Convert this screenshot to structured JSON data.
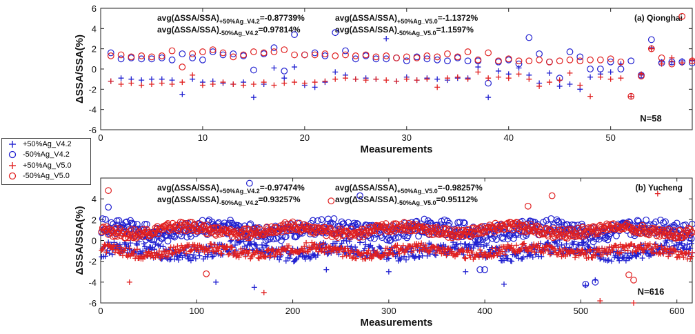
{
  "colors": {
    "blue": "#1f1fd0",
    "red": "#e01f1f",
    "axis": "#222222"
  },
  "legend": [
    {
      "label": "+50%Ag_V4.2",
      "marker": "plus",
      "color": "#1f1fd0"
    },
    {
      "label": "-50%Ag_V4.2",
      "marker": "circle",
      "color": "#1f1fd0"
    },
    {
      "label": "+50%Ag_V5.0",
      "marker": "plus",
      "color": "#e01f1f"
    },
    {
      "label": "-50%Ag_V5.0",
      "marker": "circle",
      "color": "#e01f1f"
    }
  ],
  "chart_data": [
    {
      "type": "scatter",
      "title": "(a) Qionghai",
      "xlabel": "Measurements",
      "ylabel": "ΔSSA/SSA(%)",
      "xlim": [
        0,
        58
      ],
      "ylim": [
        -6,
        6
      ],
      "xticks": [
        0,
        10,
        20,
        30,
        40,
        50
      ],
      "yticks": [
        -6,
        -4,
        -2,
        0,
        2,
        4,
        6
      ],
      "n_label": "N=58",
      "annotations": [
        {
          "prefix": "avg(ΔSSA/SSA)",
          "sub": "+50%Ag_V4.2",
          "value": "=-0.87739%"
        },
        {
          "prefix": "avg(ΔSSA/SSA)",
          "sub": "-50%Ag_V4.2",
          "value": "=0.97814%"
        },
        {
          "prefix": "avg(ΔSSA/SSA)",
          "sub": "+50%Ag_V5.0",
          "value": "=-1.1372%"
        },
        {
          "prefix": "avg(ΔSSA/SSA)",
          "sub": "-50%Ag_V5.0",
          "value": "=1.1597%"
        }
      ],
      "series": [
        {
          "name": "+50%Ag_V4.2",
          "x": [
            1,
            2,
            3,
            4,
            5,
            6,
            7,
            8,
            9,
            10,
            11,
            12,
            13,
            14,
            15,
            16,
            17,
            18,
            19,
            20,
            21,
            22,
            23,
            24,
            25,
            26,
            27,
            28,
            29,
            30,
            31,
            32,
            33,
            34,
            35,
            36,
            37,
            38,
            39,
            40,
            41,
            42,
            43,
            44,
            45,
            46,
            47,
            48,
            49,
            50,
            51,
            52,
            53,
            54,
            55,
            56,
            57,
            58
          ],
          "y": [
            -1.2,
            -0.9,
            -1.0,
            -1.1,
            -1.0,
            -1.0,
            -1.1,
            -2.5,
            -1.0,
            -1.3,
            -1.2,
            -1.4,
            -1.5,
            -1.3,
            -2.8,
            -1.5,
            0.1,
            -0.9,
            0.2,
            -1.6,
            -1.8,
            -1.3,
            -0.3,
            -0.6,
            -1.0,
            -0.9,
            -1.0,
            3.0,
            -1.2,
            -0.8,
            -1.1,
            -0.9,
            -1.0,
            -1.1,
            -0.9,
            -0.9,
            0.2,
            -2.8,
            -0.2,
            -0.5,
            0.1,
            -0.6,
            -1.4,
            -0.4,
            -1.7,
            -1.5,
            -2.0,
            -0.8,
            -0.5,
            -0.3,
            0.5,
            -2.7,
            -0.6,
            2.1,
            0.7,
            0.7,
            0.8,
            0.8
          ]
        },
        {
          "name": "-50%Ag_V4.2",
          "x": [
            1,
            2,
            3,
            4,
            5,
            6,
            7,
            8,
            9,
            10,
            11,
            12,
            13,
            14,
            15,
            16,
            17,
            18,
            19,
            20,
            21,
            22,
            23,
            24,
            25,
            26,
            27,
            28,
            29,
            30,
            31,
            32,
            33,
            34,
            35,
            36,
            37,
            38,
            39,
            40,
            41,
            42,
            43,
            44,
            45,
            46,
            47,
            48,
            49,
            50,
            51,
            52,
            53,
            54,
            55,
            56,
            57,
            58
          ],
          "y": [
            1.6,
            1.0,
            1.1,
            1.0,
            1.0,
            1.1,
            0.9,
            1.5,
            1.1,
            0.9,
            1.7,
            1.4,
            1.5,
            1.3,
            -0.1,
            1.5,
            2.1,
            -0.2,
            3.4,
            1.4,
            1.6,
            1.3,
            3.6,
            1.8,
            1.0,
            1.3,
            1.0,
            1.0,
            1.1,
            0.8,
            1.2,
            1.0,
            0.9,
            0.8,
            1.1,
            0.8,
            0.8,
            -1.4,
            0.7,
            0.9,
            0.5,
            3.1,
            1.5,
            0.7,
            -0.9,
            1.7,
            1.2,
            0.0,
            0.0,
            0.7,
            0.0,
            0.8,
            -0.6,
            2.9,
            0.6,
            0.7,
            0.7,
            0.6
          ]
        },
        {
          "name": "+50%Ag_V5.0",
          "x": [
            1,
            2,
            3,
            4,
            5,
            6,
            7,
            8,
            9,
            10,
            11,
            12,
            13,
            14,
            15,
            16,
            17,
            18,
            19,
            20,
            21,
            22,
            23,
            24,
            25,
            26,
            27,
            28,
            29,
            30,
            31,
            32,
            33,
            34,
            35,
            36,
            37,
            38,
            39,
            40,
            41,
            42,
            43,
            44,
            45,
            46,
            47,
            48,
            49,
            50,
            51,
            52,
            53,
            54,
            55,
            56,
            57,
            58
          ],
          "y": [
            -1.2,
            -1.5,
            -1.4,
            -1.6,
            -1.5,
            -1.4,
            -1.5,
            -1.3,
            -0.6,
            -1.6,
            -1.5,
            -1.3,
            -1.5,
            -1.6,
            -1.5,
            -1.3,
            -1.6,
            -1.4,
            -1.3,
            -1.4,
            -1.3,
            -1.2,
            -1.0,
            -0.9,
            -1.0,
            -1.1,
            -1.0,
            -1.1,
            -1.2,
            -1.0,
            -1.1,
            -1.0,
            -1.8,
            -0.9,
            -0.8,
            -1.0,
            -0.3,
            -0.9,
            -0.8,
            -0.9,
            -0.5,
            -1.0,
            -1.7,
            -1.3,
            -1.1,
            -0.4,
            -1.6,
            -2.7,
            -0.8,
            -1.0,
            -0.9,
            -2.7,
            -0.5,
            2.0,
            0.5,
            1.1,
            0.6,
            0.9
          ]
        },
        {
          "name": "-50%Ag_V5.0",
          "x": [
            1,
            2,
            3,
            4,
            5,
            6,
            7,
            8,
            9,
            10,
            11,
            12,
            13,
            14,
            15,
            16,
            17,
            18,
            19,
            20,
            21,
            22,
            23,
            24,
            25,
            26,
            27,
            28,
            29,
            30,
            31,
            32,
            33,
            34,
            35,
            36,
            37,
            38,
            39,
            40,
            41,
            42,
            43,
            44,
            45,
            46,
            47,
            48,
            49,
            50,
            51,
            52,
            53,
            54,
            55,
            56,
            57,
            58
          ],
          "y": [
            1.3,
            1.4,
            1.2,
            1.3,
            1.2,
            1.3,
            1.8,
            0.2,
            1.5,
            1.7,
            1.9,
            1.6,
            1.2,
            1.4,
            1.7,
            1.6,
            1.7,
            1.9,
            1.4,
            1.4,
            1.4,
            1.5,
            1.3,
            1.4,
            1.3,
            1.4,
            1.2,
            1.3,
            1.1,
            1.2,
            1.1,
            1.3,
            1.2,
            1.5,
            1.2,
            1.7,
            0.9,
            1.6,
            0.8,
            1.0,
            0.8,
            0.8,
            0.9,
            0.7,
            0.8,
            0.9,
            0.8,
            0.9,
            0.9,
            1.0,
            0.7,
            -2.7,
            -0.7,
            2.0,
            1.1,
            0.5,
            5.2,
            0.8
          ]
        }
      ]
    },
    {
      "type": "scatter",
      "title": "(b) Yucheng",
      "xlabel": "Measurements",
      "ylabel": "ΔSSA/SSA(%)",
      "xlim": [
        0,
        616
      ],
      "ylim": [
        -6,
        6
      ],
      "xticks": [
        0,
        100,
        200,
        300,
        400,
        500,
        600
      ],
      "yticks": [
        -6,
        -4,
        -2,
        0,
        2,
        4
      ],
      "n_label": "N=616",
      "annotations": [
        {
          "prefix": "avg(ΔSSA/SSA)",
          "sub": "+50%Ag_V4.2",
          "value": "=-0.97474%"
        },
        {
          "prefix": "avg(ΔSSA/SSA)",
          "sub": "-50%Ag_V4.2",
          "value": "=0.93257%"
        },
        {
          "prefix": "avg(ΔSSA/SSA)",
          "sub": "+50%Ag_V5.0",
          "value": "=-0.98257%"
        },
        {
          "prefix": "avg(ΔSSA/SSA)",
          "sub": "-50%Ag_V5.0",
          "value": "=0.95112%"
        }
      ],
      "series": [
        {
          "name": "+50%Ag_V4.2",
          "n": 616,
          "typical": -1.0,
          "spread": 0.7,
          "outliers_x": [
            120,
            160,
            235,
            300,
            380,
            420,
            505,
            515
          ],
          "outliers_y": [
            -4.0,
            -4.5,
            -2.8,
            -3.0,
            -3.0,
            -4.2,
            -4.3,
            -3.8
          ]
        },
        {
          "name": "-50%Ag_V4.2",
          "n": 616,
          "typical": 1.0,
          "spread": 0.8,
          "outliers_x": [
            8,
            155,
            270,
            395,
            400,
            505,
            515
          ],
          "outliers_y": [
            3.2,
            5.5,
            4.3,
            -2.8,
            -2.8,
            -4.2,
            -4.0
          ]
        },
        {
          "name": "+50%Ag_V5.0",
          "n": 616,
          "typical": -1.0,
          "spread": 0.45,
          "outliers_x": [
            30,
            170,
            520,
            555,
            580
          ],
          "outliers_y": [
            -4.0,
            -5.0,
            -5.8,
            -6.0,
            4.5
          ]
        },
        {
          "name": "-50%Ag_V5.0",
          "n": 616,
          "typical": 1.0,
          "spread": 0.45,
          "outliers_x": [
            8,
            110,
            240,
            445,
            470,
            550,
            555
          ],
          "outliers_y": [
            4.8,
            -3.2,
            3.8,
            3.3,
            4.3,
            -3.3,
            -3.8
          ]
        }
      ]
    }
  ]
}
